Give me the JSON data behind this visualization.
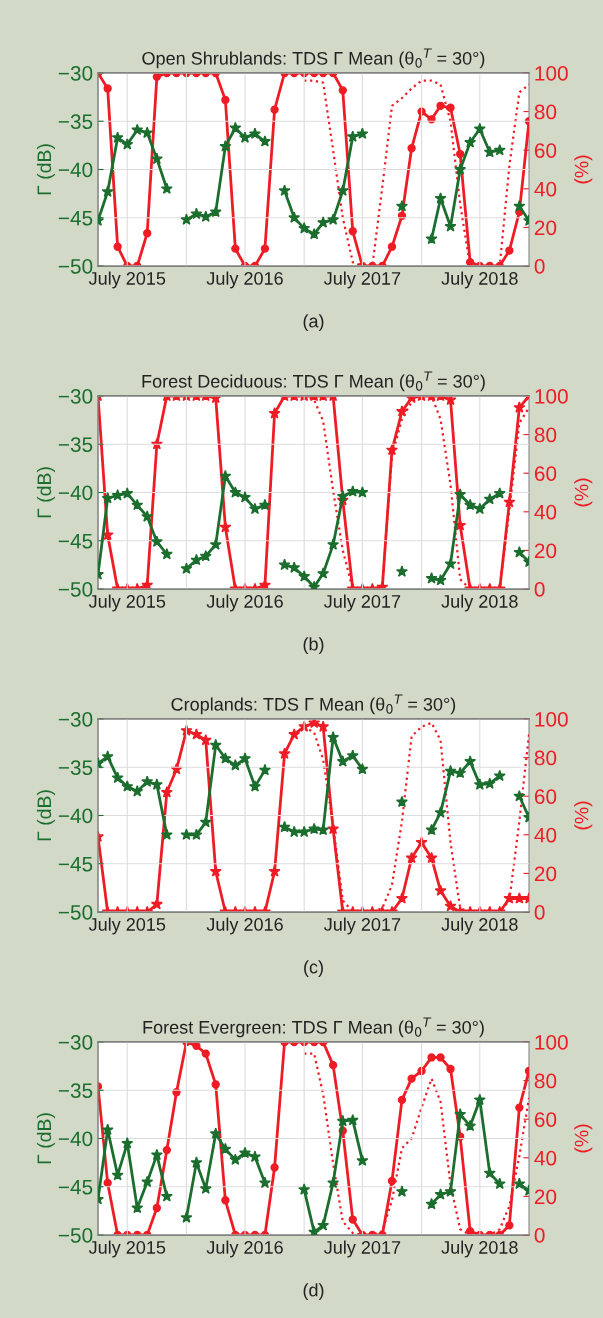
{
  "chart_data": [
    {
      "type": "line",
      "title": "Open Shrublands: TDS Γ Mean (θ$_{0}$$^{T}$ = 30°)",
      "ylabel": "Γ (dB)",
      "y2label": "(%)",
      "annotations": [
        "(a)"
      ],
      "x": [
        "2015-04",
        "2015-05",
        "2015-06",
        "2015-07",
        "2015-08",
        "2015-09",
        "2015-10",
        "2015-11",
        "2015-12",
        "2016-01",
        "2016-02",
        "2016-03",
        "2016-04",
        "2016-05",
        "2016-06",
        "2016-07",
        "2016-08",
        "2016-09",
        "2016-10",
        "2016-11",
        "2016-12",
        "2017-01",
        "2017-02",
        "2017-03",
        "2017-04",
        "2017-05",
        "2017-06",
        "2017-07",
        "2017-08",
        "2017-09",
        "2017-10",
        "2017-11",
        "2017-12",
        "2018-01",
        "2018-02",
        "2018-03",
        "2018-04",
        "2018-05",
        "2018-06",
        "2018-07",
        "2018-08",
        "2018-09",
        "2018-10",
        "2018-11",
        "2018-12"
      ],
      "series": [
        {
          "color": "#1b6e2d",
          "marker": "star",
          "line_style": "solid",
          "values": [
            -45.3,
            -42.3,
            -36.7,
            -37.4,
            -35.9,
            -36.2,
            -38.9,
            -42.0,
            null,
            -45.2,
            -44.6,
            -44.9,
            -44.4,
            -37.6,
            -35.7,
            -36.7,
            -36.3,
            -37.1,
            null,
            -42.2,
            -45.0,
            -46.1,
            -46.7,
            -45.5,
            -45.2,
            -42.2,
            -36.6,
            -36.3,
            null,
            null,
            null,
            -43.8,
            null,
            null,
            -47.2,
            -43.0,
            -45.9,
            -40.0,
            -37.2,
            -35.8,
            -38.2,
            -38.0,
            null,
            -43.8,
            -45.3
          ]
        },
        {
          "color": "#ee1c25",
          "marker": "circle",
          "line_style": "solid",
          "axis": "y2",
          "values": [
            100,
            92,
            10,
            0,
            0,
            17,
            98,
            100,
            100,
            100,
            100,
            100,
            100,
            86,
            9,
            0,
            0,
            9,
            81,
            100,
            100,
            100,
            100,
            100,
            100,
            91,
            18,
            0,
            0,
            0,
            10,
            26,
            61,
            80,
            76,
            83,
            82,
            58,
            2,
            0,
            0,
            0,
            8,
            28,
            75
          ]
        },
        {
          "color": "#ee1c25",
          "marker": "none",
          "line_style": "dotted",
          "axis": "y2",
          "values": [
            null,
            null,
            null,
            null,
            null,
            null,
            null,
            null,
            null,
            null,
            null,
            null,
            null,
            null,
            null,
            null,
            null,
            null,
            null,
            null,
            null,
            96,
            96,
            95,
            60,
            25,
            2,
            0,
            0,
            41,
            83,
            87,
            92,
            96,
            96,
            94,
            75,
            32,
            0,
            0,
            0,
            0,
            52,
            90,
            94
          ]
        }
      ],
      "xlim": [
        "2015-04",
        "2018-12"
      ],
      "xticks": [
        {
          "value": "2015-07",
          "label": "July 2015"
        },
        {
          "value": "2016-01",
          "label": null
        },
        {
          "value": "2016-07",
          "label": "July 2016"
        },
        {
          "value": "2017-01",
          "label": null
        },
        {
          "value": "2017-07",
          "label": "July 2017"
        },
        {
          "value": "2018-01",
          "label": null
        },
        {
          "value": "2018-07",
          "label": "July 2018"
        }
      ],
      "ylim": [
        -50,
        -30
      ],
      "yticks": [
        {
          "value": -50,
          "label": "−50"
        },
        {
          "value": -45,
          "label": "−45"
        },
        {
          "value": -40,
          "label": "−40"
        },
        {
          "value": -35,
          "label": "−35"
        },
        {
          "value": -30,
          "label": "−30"
        }
      ],
      "y2lim": [
        0,
        100
      ],
      "y2ticks": [
        0,
        20,
        40,
        60,
        80,
        100
      ],
      "grid": true
    },
    {
      "type": "line",
      "title": "Forest Deciduous: TDS Γ Mean (θ$_{0}$$^{T}$ = 30°)",
      "ylabel": "Γ (dB)",
      "y2label": "(%)",
      "annotations": [
        "(b)"
      ],
      "x": [
        "2015-04",
        "2015-05",
        "2015-06",
        "2015-07",
        "2015-08",
        "2015-09",
        "2015-10",
        "2015-11",
        "2015-12",
        "2016-01",
        "2016-02",
        "2016-03",
        "2016-04",
        "2016-05",
        "2016-06",
        "2016-07",
        "2016-08",
        "2016-09",
        "2016-10",
        "2016-11",
        "2016-12",
        "2017-01",
        "2017-02",
        "2017-03",
        "2017-04",
        "2017-05",
        "2017-06",
        "2017-07",
        "2017-08",
        "2017-09",
        "2017-10",
        "2017-11",
        "2017-12",
        "2018-01",
        "2018-02",
        "2018-03",
        "2018-04",
        "2018-05",
        "2018-06",
        "2018-07",
        "2018-08",
        "2018-09",
        "2018-10",
        "2018-11",
        "2018-12"
      ],
      "series": [
        {
          "color": "#1b6e2d",
          "marker": "star",
          "line_style": "solid",
          "values": [
            -48.5,
            -40.6,
            -40.3,
            -40.1,
            -41.3,
            -42.5,
            -45.1,
            -46.4,
            null,
            -47.9,
            -47.0,
            -46.6,
            -45.4,
            -38.3,
            -40.0,
            -40.5,
            -41.7,
            -41.3,
            null,
            -47.5,
            -47.8,
            -48.7,
            -49.8,
            -48.4,
            -45.4,
            -40.4,
            -39.9,
            -40.0,
            null,
            null,
            null,
            -48.2,
            null,
            null,
            -48.9,
            -49.1,
            -47.4,
            -40.2,
            -41.3,
            -41.7,
            -40.7,
            -40.1,
            null,
            -46.2,
            -47.2
          ]
        },
        {
          "color": "#ee1c25",
          "marker": "star",
          "line_style": "solid",
          "axis": "y2",
          "values": [
            100,
            28,
            0,
            0,
            0,
            2,
            75,
            100,
            100,
            100,
            100,
            100,
            99,
            32,
            0,
            0,
            0,
            2,
            91,
            100,
            100,
            100,
            100,
            100,
            100,
            46,
            0,
            0,
            0,
            1,
            72,
            92,
            99,
            100,
            100,
            100,
            98,
            33,
            0,
            0,
            0,
            0,
            45,
            94,
            100
          ]
        },
        {
          "color": "#ee1c25",
          "marker": "none",
          "line_style": "dotted",
          "axis": "y2",
          "values": [
            null,
            null,
            null,
            null,
            null,
            null,
            null,
            null,
            null,
            null,
            null,
            null,
            null,
            null,
            null,
            null,
            null,
            null,
            null,
            null,
            null,
            100,
            98,
            87,
            51,
            20,
            0,
            0,
            0,
            2,
            69,
            88,
            97,
            100,
            100,
            88,
            54,
            5,
            0,
            0,
            0,
            0,
            41,
            86,
            94
          ]
        }
      ],
      "xlim": [
        "2015-04",
        "2018-12"
      ],
      "xticks": [
        {
          "value": "2015-07",
          "label": "July 2015"
        },
        {
          "value": "2016-01",
          "label": null
        },
        {
          "value": "2016-07",
          "label": "July 2016"
        },
        {
          "value": "2017-01",
          "label": null
        },
        {
          "value": "2017-07",
          "label": "July 2017"
        },
        {
          "value": "2018-01",
          "label": null
        },
        {
          "value": "2018-07",
          "label": "July 2018"
        }
      ],
      "ylim": [
        -50,
        -30
      ],
      "yticks": [
        {
          "value": -50,
          "label": "−50"
        },
        {
          "value": -45,
          "label": "−45"
        },
        {
          "value": -40,
          "label": "−40"
        },
        {
          "value": -35,
          "label": "−35"
        },
        {
          "value": -30,
          "label": "−30"
        }
      ],
      "y2lim": [
        0,
        100
      ],
      "y2ticks": [
        0,
        20,
        40,
        60,
        80,
        100
      ],
      "grid": true
    },
    {
      "type": "line",
      "title": "Croplands: TDS Γ Mean (θ$_{0}$$^{T}$ = 30°)",
      "ylabel": "Γ (dB)",
      "y2label": "(%)",
      "annotations": [
        "(c)"
      ],
      "x": [
        "2015-04",
        "2015-05",
        "2015-06",
        "2015-07",
        "2015-08",
        "2015-09",
        "2015-10",
        "2015-11",
        "2015-12",
        "2016-01",
        "2016-02",
        "2016-03",
        "2016-04",
        "2016-05",
        "2016-06",
        "2016-07",
        "2016-08",
        "2016-09",
        "2016-10",
        "2016-11",
        "2016-12",
        "2017-01",
        "2017-02",
        "2017-03",
        "2017-04",
        "2017-05",
        "2017-06",
        "2017-07",
        "2017-08",
        "2017-09",
        "2017-10",
        "2017-11",
        "2017-12",
        "2018-01",
        "2018-02",
        "2018-03",
        "2018-04",
        "2018-05",
        "2018-06",
        "2018-07",
        "2018-08",
        "2018-09",
        "2018-10",
        "2018-11",
        "2018-12"
      ],
      "series": [
        {
          "color": "#1b6e2d",
          "marker": "star",
          "line_style": "solid",
          "values": [
            -34.6,
            -33.9,
            -36.1,
            -37.0,
            -37.5,
            -36.5,
            -36.8,
            -42.0,
            null,
            -42.0,
            -42.0,
            -40.7,
            -32.7,
            -34.1,
            -34.8,
            -34.1,
            -37.0,
            -35.3,
            null,
            -41.2,
            -41.7,
            -41.7,
            -41.4,
            -41.5,
            -31.9,
            -34.4,
            -33.8,
            -35.2,
            null,
            null,
            null,
            -38.6,
            null,
            null,
            -41.5,
            -39.7,
            -35.4,
            -35.6,
            -34.4,
            -36.8,
            -36.7,
            -35.9,
            null,
            -38.0,
            -40.2
          ]
        },
        {
          "color": "#ee1c25",
          "marker": "star",
          "line_style": "solid",
          "axis": "y2",
          "values": [
            39,
            0,
            0,
            0,
            0,
            0,
            4,
            62,
            74,
            94,
            92,
            89,
            21,
            0,
            0,
            0,
            0,
            0,
            21,
            82,
            92,
            96,
            98,
            96,
            43,
            0,
            0,
            0,
            0,
            0,
            0,
            7,
            28,
            36,
            28,
            11,
            3,
            0,
            0,
            0,
            0,
            0,
            7,
            7,
            7
          ]
        },
        {
          "color": "#ee1c25",
          "marker": "none",
          "line_style": "dotted",
          "axis": "y2",
          "values": [
            null,
            null,
            null,
            null,
            null,
            null,
            null,
            null,
            null,
            null,
            null,
            null,
            null,
            null,
            null,
            null,
            null,
            null,
            null,
            null,
            null,
            96,
            93,
            79,
            45,
            6,
            0,
            0,
            0,
            2,
            14,
            47,
            91,
            96,
            98,
            89,
            36,
            2,
            0,
            0,
            0,
            0,
            6,
            47,
            92
          ]
        }
      ],
      "xlim": [
        "2015-04",
        "2018-12"
      ],
      "xticks": [
        {
          "value": "2015-07",
          "label": "July 2015"
        },
        {
          "value": "2016-01",
          "label": null
        },
        {
          "value": "2016-07",
          "label": "July 2016"
        },
        {
          "value": "2017-01",
          "label": null
        },
        {
          "value": "2017-07",
          "label": "July 2017"
        },
        {
          "value": "2018-01",
          "label": null
        },
        {
          "value": "2018-07",
          "label": "July 2018"
        }
      ],
      "ylim": [
        -50,
        -30
      ],
      "yticks": [
        {
          "value": -50,
          "label": "−50"
        },
        {
          "value": -45,
          "label": "−45"
        },
        {
          "value": -40,
          "label": "−40"
        },
        {
          "value": -35,
          "label": "−35"
        },
        {
          "value": -30,
          "label": "−30"
        }
      ],
      "y2lim": [
        0,
        100
      ],
      "y2ticks": [
        0,
        20,
        40,
        60,
        80,
        100
      ],
      "grid": true
    },
    {
      "type": "line",
      "title": "Forest Evergreen: TDS Γ Mean (θ$_{0}$$^{T}$ = 30°)",
      "ylabel": "Γ (dB)",
      "y2label": "(%)",
      "annotations": [
        "(d)"
      ],
      "x": [
        "2015-04",
        "2015-05",
        "2015-06",
        "2015-07",
        "2015-08",
        "2015-09",
        "2015-10",
        "2015-11",
        "2015-12",
        "2016-01",
        "2016-02",
        "2016-03",
        "2016-04",
        "2016-05",
        "2016-06",
        "2016-07",
        "2016-08",
        "2016-09",
        "2016-10",
        "2016-11",
        "2016-12",
        "2017-01",
        "2017-02",
        "2017-03",
        "2017-04",
        "2017-05",
        "2017-06",
        "2017-07",
        "2017-08",
        "2017-09",
        "2017-10",
        "2017-11",
        "2017-12",
        "2018-01",
        "2018-02",
        "2018-03",
        "2018-04",
        "2018-05",
        "2018-06",
        "2018-07",
        "2018-08",
        "2018-09",
        "2018-10",
        "2018-11",
        "2018-12"
      ],
      "series": [
        {
          "color": "#1b6e2d",
          "marker": "star",
          "line_style": "solid",
          "values": [
            -46.3,
            -39.1,
            -43.8,
            -40.5,
            -47.2,
            -44.5,
            -41.7,
            -46.0,
            null,
            -48.2,
            -42.5,
            -45.2,
            -39.5,
            -41.1,
            -42.2,
            -41.5,
            -41.9,
            -44.6,
            null,
            null,
            null,
            -45.3,
            -49.7,
            -49.0,
            -44.6,
            -38.2,
            -38.1,
            -42.3,
            null,
            null,
            null,
            -45.5,
            null,
            null,
            -46.8,
            -45.8,
            -45.5,
            -37.5,
            -38.7,
            -36.0,
            -43.6,
            -44.7,
            null,
            -44.7,
            -45.4
          ]
        },
        {
          "color": "#ee1c25",
          "marker": "circle",
          "line_style": "solid",
          "axis": "y2",
          "values": [
            77,
            27,
            0,
            0,
            0,
            0,
            14,
            44,
            74,
            100,
            98,
            94,
            78,
            18,
            0,
            0,
            0,
            0,
            35,
            100,
            100,
            100,
            100,
            100,
            88,
            54,
            8,
            0,
            0,
            0,
            28,
            70,
            81,
            85,
            92,
            92,
            86,
            51,
            2,
            0,
            0,
            0,
            5,
            66,
            85
          ]
        },
        {
          "color": "#ee1c25",
          "marker": "none",
          "line_style": "dotted",
          "axis": "y2",
          "values": [
            null,
            null,
            null,
            null,
            null,
            null,
            null,
            null,
            null,
            null,
            null,
            null,
            null,
            null,
            null,
            null,
            null,
            null,
            null,
            null,
            null,
            94,
            94,
            73,
            37,
            7,
            1,
            0,
            0,
            2,
            18,
            45,
            50,
            66,
            81,
            69,
            26,
            3,
            0,
            0,
            0,
            3,
            15,
            41,
            71
          ]
        }
      ],
      "xlim": [
        "2015-04",
        "2018-12"
      ],
      "xticks": [
        {
          "value": "2015-07",
          "label": "July 2015"
        },
        {
          "value": "2016-01",
          "label": null
        },
        {
          "value": "2016-07",
          "label": "July 2016"
        },
        {
          "value": "2017-01",
          "label": null
        },
        {
          "value": "2017-07",
          "label": "July 2017"
        },
        {
          "value": "2018-01",
          "label": null
        },
        {
          "value": "2018-07",
          "label": "July 2018"
        }
      ],
      "ylim": [
        -50,
        -30
      ],
      "yticks": [
        {
          "value": -50,
          "label": "−50"
        },
        {
          "value": -45,
          "label": "−45"
        },
        {
          "value": -40,
          "label": "−40"
        },
        {
          "value": -35,
          "label": "−35"
        },
        {
          "value": -30,
          "label": "−30"
        }
      ],
      "y2lim": [
        0,
        100
      ],
      "y2ticks": [
        0,
        20,
        40,
        60,
        80,
        100
      ],
      "grid": true
    }
  ]
}
